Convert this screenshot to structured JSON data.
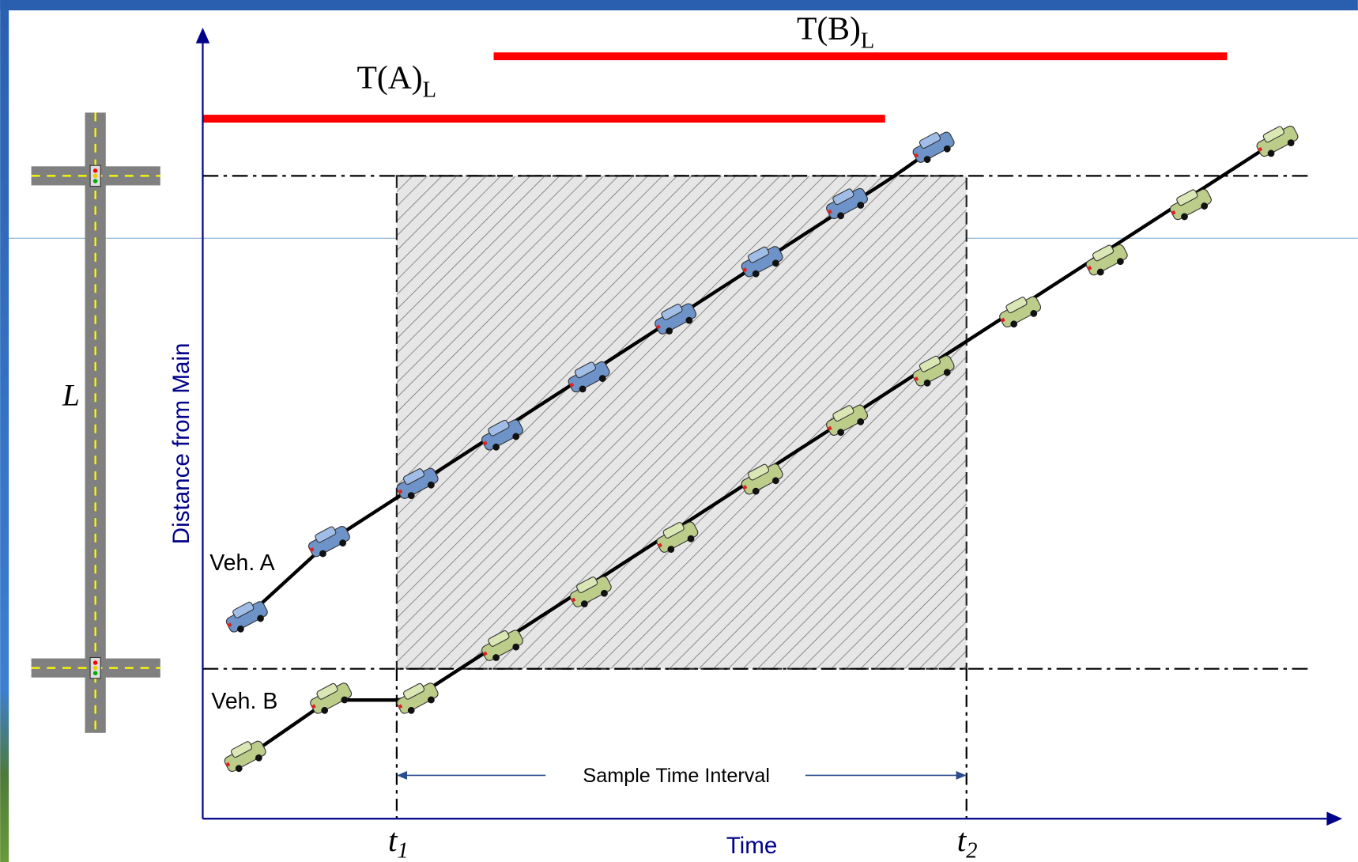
{
  "labels": {
    "tb": {
      "main": "T(B)",
      "sub": "L"
    },
    "ta": {
      "main": "T(A)",
      "sub": "L"
    },
    "y_axis": "Distance from Main",
    "x_axis": "Time",
    "veh_a": "Veh. A",
    "veh_b": "Veh. B",
    "interval": "Sample Time Interval",
    "t1": {
      "main": "t",
      "sub": "1"
    },
    "t2": {
      "main": "t",
      "sub": "2"
    },
    "length": "L"
  }
}
